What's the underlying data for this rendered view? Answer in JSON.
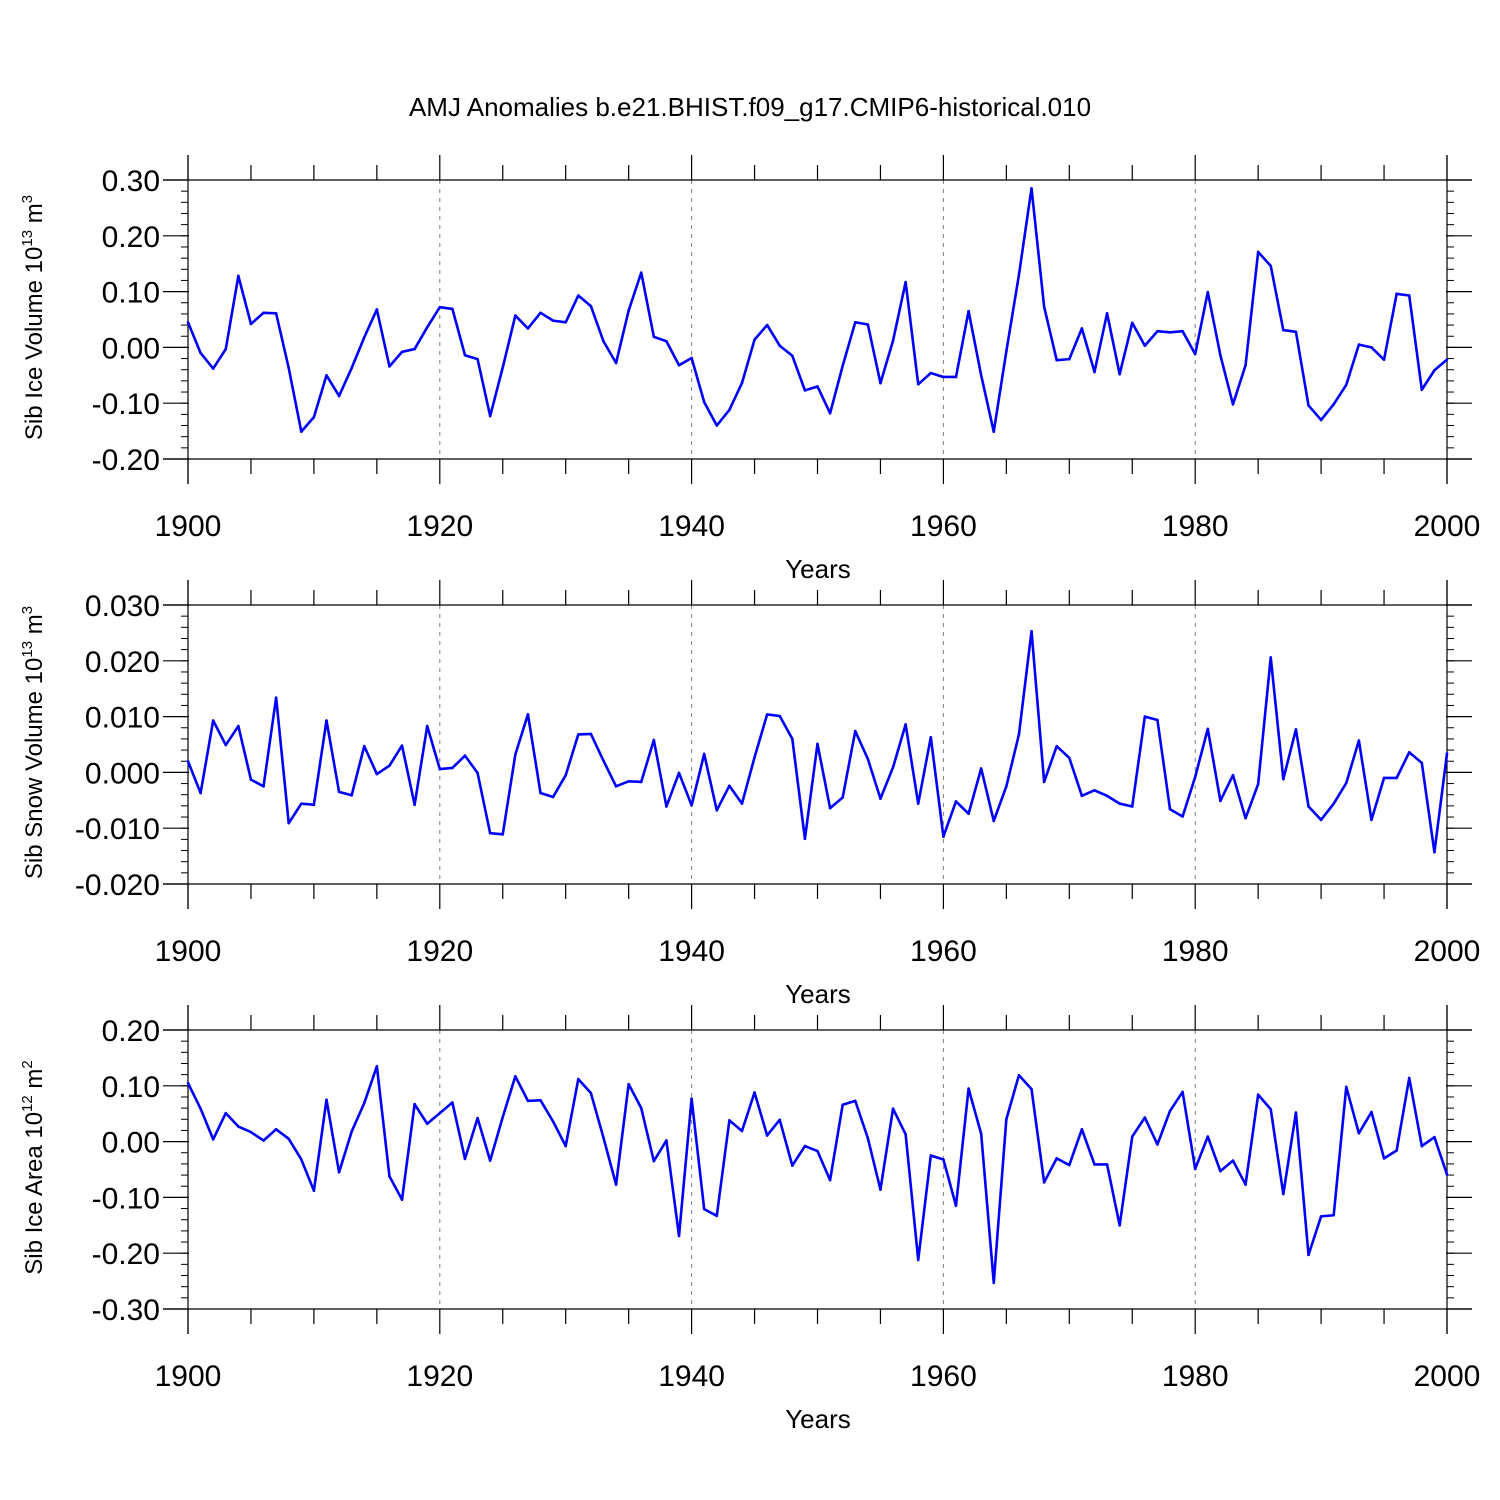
{
  "figure_title": "AMJ Anomalies b.e21.BHIST.f09_g17.CMIP6-historical.010",
  "colors": {
    "line": "#0000ff",
    "axis": "#000000",
    "grid": "#808080"
  },
  "chart_data": [
    {
      "type": "line",
      "title": "AMJ Anomalies b.e21.BHIST.f09_g17.CMIP6-historical.010",
      "xlabel": "Years",
      "ylabel_text": "Sib Ice Volume 10",
      "ylabel_exp": "13",
      "ylabel_unit": " m",
      "ylabel_unit_exp": "3",
      "xlim": [
        1900,
        2000
      ],
      "ylim": [
        -0.2,
        0.3
      ],
      "xticks": [
        1900,
        1920,
        1940,
        1960,
        1980,
        2000
      ],
      "xtick_labels": [
        "1900",
        "1920",
        "1940",
        "1960",
        "1980",
        "2000"
      ],
      "yticks": [
        -0.2,
        -0.1,
        0.0,
        0.1,
        0.2,
        0.3
      ],
      "ytick_labels": [
        "-0.20",
        "-0.10",
        "0.00",
        "0.10",
        "0.20",
        "0.30"
      ],
      "yminor_step": 0.02,
      "grid": "vertical dashed at major x ticks",
      "x_start": 1900,
      "values": [
        0.045,
        -0.01,
        -0.038,
        -0.003,
        0.128,
        0.042,
        0.062,
        0.061,
        -0.037,
        -0.151,
        -0.125,
        -0.05,
        -0.087,
        -0.037,
        0.018,
        0.068,
        -0.034,
        -0.008,
        -0.003,
        0.036,
        0.072,
        0.069,
        -0.014,
        -0.021,
        -0.123,
        -0.036,
        0.057,
        0.034,
        0.062,
        0.048,
        0.045,
        0.093,
        0.074,
        0.011,
        -0.028,
        0.066,
        0.134,
        0.019,
        0.011,
        -0.032,
        -0.019,
        -0.098,
        -0.14,
        -0.112,
        -0.064,
        0.014,
        0.04,
        0.003,
        -0.015,
        -0.077,
        -0.07,
        -0.118,
        -0.033,
        0.045,
        0.041,
        -0.064,
        0.012,
        0.117,
        -0.066,
        -0.046,
        -0.053,
        -0.053,
        0.065,
        -0.05,
        -0.151,
        -0.007,
        0.13,
        0.285,
        0.073,
        -0.023,
        -0.021,
        0.034,
        -0.044,
        0.061,
        -0.048,
        0.044,
        0.003,
        0.029,
        0.027,
        0.029,
        -0.012,
        0.099,
        -0.014,
        -0.102,
        -0.032,
        0.171,
        0.146,
        0.031,
        0.028,
        -0.104,
        -0.13,
        -0.102,
        -0.067,
        0.005,
        0.0,
        -0.022,
        0.096,
        0.093,
        -0.076,
        -0.041,
        -0.022
      ]
    },
    {
      "type": "line",
      "xlabel": "Years",
      "ylabel_text": "Sib Snow Volume 10",
      "ylabel_exp": "13",
      "ylabel_unit": " m",
      "ylabel_unit_exp": "3",
      "xlim": [
        1900,
        2000
      ],
      "ylim": [
        -0.02,
        0.03
      ],
      "xticks": [
        1900,
        1920,
        1940,
        1960,
        1980,
        2000
      ],
      "xtick_labels": [
        "1900",
        "1920",
        "1940",
        "1960",
        "1980",
        "2000"
      ],
      "yticks": [
        -0.02,
        -0.01,
        0.0,
        0.01,
        0.02,
        0.03
      ],
      "ytick_labels": [
        "-0.020",
        "-0.010",
        "0.000",
        "0.010",
        "0.020",
        "0.030"
      ],
      "yminor_step": 0.002,
      "grid": "vertical dashed at major x ticks",
      "x_start": 1900,
      "values": [
        0.002,
        -0.0037,
        0.0093,
        0.0049,
        0.0083,
        -0.0013,
        -0.0025,
        0.0134,
        -0.0091,
        -0.0056,
        -0.0058,
        0.0093,
        -0.0035,
        -0.0041,
        0.0047,
        -0.0003,
        0.0012,
        0.0048,
        -0.0058,
        0.0083,
        0.0006,
        0.0008,
        0.003,
        -0.0001,
        -0.0109,
        -0.0111,
        0.0032,
        0.0104,
        -0.0037,
        -0.0044,
        -0.0005,
        0.0068,
        0.0069,
        0.0021,
        -0.0025,
        -0.0016,
        -0.0017,
        0.0058,
        -0.0061,
        -0.0001,
        -0.0059,
        0.0033,
        -0.0068,
        -0.0024,
        -0.0056,
        0.0027,
        0.0104,
        0.0101,
        0.006,
        -0.0119,
        0.0051,
        -0.0064,
        -0.0045,
        0.0074,
        0.0024,
        -0.0047,
        0.0009,
        0.0086,
        -0.0056,
        0.0063,
        -0.0115,
        -0.0052,
        -0.0074,
        0.0007,
        -0.0087,
        -0.0025,
        0.0068,
        0.0253,
        -0.0017,
        0.0047,
        0.0026,
        -0.0042,
        -0.0032,
        -0.0042,
        -0.0056,
        -0.0061,
        0.01,
        0.0094,
        -0.0066,
        -0.0079,
        -0.0008,
        0.0078,
        -0.0051,
        -0.0005,
        -0.0082,
        -0.0021,
        0.0206,
        -0.0012,
        0.0077,
        -0.0061,
        -0.0085,
        -0.0056,
        -0.0019,
        0.0057,
        -0.0085,
        -0.001,
        -0.001,
        0.0036,
        0.0017,
        -0.0143,
        0.0034
      ]
    },
    {
      "type": "line",
      "xlabel": "Years",
      "ylabel_text": "Sib Ice Area 10",
      "ylabel_exp": "12",
      "ylabel_unit": " m",
      "ylabel_unit_exp": "2",
      "xlim": [
        1900,
        2000
      ],
      "ylim": [
        -0.3,
        0.2
      ],
      "xticks": [
        1900,
        1920,
        1940,
        1960,
        1980,
        2000
      ],
      "xtick_labels": [
        "1900",
        "1920",
        "1940",
        "1960",
        "1980",
        "2000"
      ],
      "yticks": [
        -0.3,
        -0.2,
        -0.1,
        0.0,
        0.1,
        0.2
      ],
      "ytick_labels": [
        "-0.30",
        "-0.20",
        "-0.10",
        "0.00",
        "0.10",
        "0.20"
      ],
      "yminor_step": 0.02,
      "grid": "vertical dashed at major x ticks",
      "x_start": 1900,
      "values": [
        0.105,
        0.059,
        0.004,
        0.051,
        0.027,
        0.017,
        0.002,
        0.022,
        0.005,
        -0.032,
        -0.088,
        0.075,
        -0.055,
        0.018,
        0.069,
        0.135,
        -0.062,
        -0.104,
        0.067,
        0.032,
        0.051,
        0.07,
        -0.031,
        0.042,
        -0.034,
        0.044,
        0.117,
        0.073,
        0.074,
        0.036,
        -0.008,
        0.112,
        0.087,
        0.007,
        -0.077,
        0.103,
        0.06,
        -0.035,
        0.002,
        -0.169,
        0.077,
        -0.121,
        -0.133,
        0.038,
        0.019,
        0.088,
        0.011,
        0.039,
        -0.043,
        -0.008,
        -0.017,
        -0.069,
        0.066,
        0.073,
        0.006,
        -0.086,
        0.059,
        0.013,
        -0.212,
        -0.025,
        -0.032,
        -0.115,
        0.095,
        0.014,
        -0.253,
        0.04,
        0.119,
        0.094,
        -0.073,
        -0.03,
        -0.042,
        0.022,
        -0.041,
        -0.041,
        -0.15,
        0.009,
        0.043,
        -0.005,
        0.055,
        0.089,
        -0.049,
        0.009,
        -0.053,
        -0.034,
        -0.077,
        0.084,
        0.058,
        -0.094,
        0.052,
        -0.203,
        -0.134,
        -0.132,
        0.098,
        0.015,
        0.053,
        -0.03,
        -0.016,
        0.114,
        -0.008,
        0.008,
        -0.059
      ]
    }
  ]
}
